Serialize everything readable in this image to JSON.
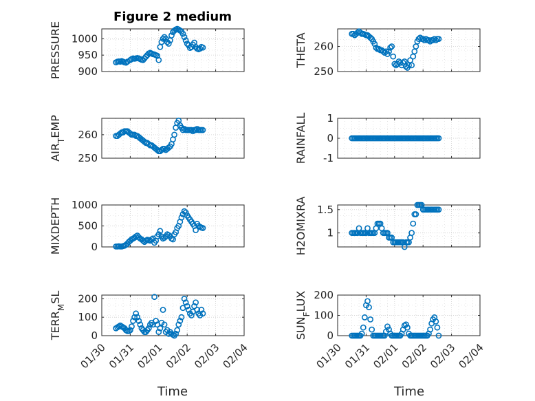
{
  "figure": {
    "title": "Figure 2 medium",
    "xlabel": "Time",
    "x_ticks": [
      "01/30",
      "01/31",
      "02/01",
      "02/02",
      "02/03",
      "02/04"
    ]
  },
  "colors": {
    "marker": "#0072BD",
    "grid": "#cfcfcf",
    "axis": "#262626"
  },
  "chart_data": [
    {
      "type": "scatter",
      "title": "Figure 2 medium",
      "ylabel": "PRESSURE",
      "ylim": [
        900,
        1030
      ],
      "yticks": [
        900,
        950,
        1000
      ],
      "grid": true,
      "x": [
        0.5,
        0.55,
        0.6,
        0.65,
        0.7,
        0.75,
        0.8,
        0.85,
        0.9,
        1.0,
        1.05,
        1.1,
        1.15,
        1.2,
        1.25,
        1.3,
        1.35,
        1.4,
        1.45,
        1.5,
        1.55,
        1.6,
        1.65,
        1.7,
        1.75,
        1.8,
        1.85,
        1.9,
        1.95,
        2.0,
        2.05,
        2.1,
        2.15,
        2.2,
        2.25,
        2.3,
        2.35,
        2.4,
        2.45,
        2.5,
        2.55,
        2.6,
        2.65,
        2.7,
        2.75,
        2.8,
        2.85,
        2.9,
        2.95,
        3.0,
        3.05,
        3.1,
        3.15,
        3.2,
        3.25,
        3.3,
        3.35,
        3.4,
        3.45,
        3.5,
        3.55
      ],
      "y": [
        928,
        930,
        931,
        930,
        932,
        930,
        928,
        927,
        930,
        935,
        938,
        940,
        939,
        940,
        941,
        940,
        938,
        936,
        935,
        940,
        945,
        950,
        955,
        957,
        955,
        953,
        952,
        950,
        948,
        935,
        975,
        990,
        1000,
        1005,
        1000,
        990,
        985,
        995,
        1010,
        1020,
        1025,
        1028,
        1030,
        1028,
        1025,
        1022,
        1015,
        1005,
        995,
        985,
        980,
        972,
        975,
        982,
        988,
        975,
        970,
        968,
        970,
        975,
        973
      ]
    },
    {
      "type": "scatter",
      "ylabel": "THETA",
      "ylim": [
        250,
        267
      ],
      "yticks": [
        250,
        260
      ],
      "grid": true,
      "x": [
        0.5,
        0.55,
        0.6,
        0.65,
        0.7,
        0.75,
        0.8,
        0.85,
        0.9,
        0.95,
        1.0,
        1.05,
        1.1,
        1.15,
        1.2,
        1.25,
        1.3,
        1.35,
        1.4,
        1.45,
        1.5,
        1.55,
        1.6,
        1.65,
        1.7,
        1.75,
        1.8,
        1.85,
        1.9,
        1.95,
        2.0,
        2.05,
        2.1,
        2.15,
        2.2,
        2.25,
        2.3,
        2.35,
        2.4,
        2.45,
        2.5,
        2.55,
        2.6,
        2.65,
        2.7,
        2.75,
        2.8,
        2.85,
        2.9,
        2.95,
        3.0,
        3.05,
        3.1,
        3.15,
        3.2,
        3.25,
        3.3,
        3.35,
        3.4,
        3.45,
        3.5,
        3.55
      ],
      "y": [
        265,
        265,
        264.5,
        265,
        265.5,
        266,
        265.5,
        265,
        265,
        264.8,
        264.5,
        264.5,
        264,
        263.5,
        263,
        262,
        261,
        259.5,
        259,
        259,
        258.5,
        258.5,
        258,
        257.5,
        258,
        257,
        258,
        259.5,
        260,
        256,
        253,
        252.5,
        253,
        254,
        253.5,
        252.5,
        253.5,
        254,
        252,
        251.5,
        252.5,
        254.5,
        252.5,
        256,
        258,
        260,
        262,
        263,
        263.5,
        263,
        263,
        262.5,
        263,
        262.5,
        262.5,
        262,
        262.5,
        262.5,
        263,
        262.5,
        263,
        263
      ]
    },
    {
      "type": "scatter",
      "ylabel": "AIR_TEMP",
      "ylim": [
        250,
        267
      ],
      "yticks": [
        250,
        260
      ],
      "grid": true,
      "x": [
        0.5,
        0.55,
        0.6,
        0.65,
        0.7,
        0.75,
        0.8,
        0.85,
        0.9,
        0.95,
        1.0,
        1.05,
        1.1,
        1.15,
        1.2,
        1.25,
        1.3,
        1.35,
        1.4,
        1.45,
        1.5,
        1.55,
        1.6,
        1.65,
        1.7,
        1.75,
        1.8,
        1.85,
        1.9,
        1.95,
        2.0,
        2.05,
        2.1,
        2.15,
        2.2,
        2.25,
        2.3,
        2.35,
        2.4,
        2.45,
        2.5,
        2.55,
        2.6,
        2.65,
        2.7,
        2.75,
        2.8,
        2.85,
        2.9,
        2.95,
        3.0,
        3.05,
        3.1,
        3.15,
        3.2,
        3.25,
        3.3,
        3.35,
        3.4,
        3.45,
        3.5,
        3.55
      ],
      "y": [
        259.5,
        259.5,
        260,
        260.5,
        261,
        261,
        261.5,
        261.5,
        261.5,
        261,
        260.5,
        260,
        260,
        260,
        259.5,
        259.5,
        259,
        258.5,
        258,
        257.5,
        257,
        256.5,
        256.5,
        256,
        255.5,
        255.5,
        255,
        254.5,
        254,
        253.5,
        253,
        253,
        253.5,
        254,
        254,
        253.5,
        254,
        254.5,
        255,
        256,
        258,
        260,
        263,
        265,
        266,
        264,
        263,
        262,
        262.5,
        262,
        262,
        262,
        262,
        262,
        261.5,
        262,
        262,
        262.5,
        262,
        262,
        262,
        262
      ]
    },
    {
      "type": "scatter",
      "ylabel": "RAINFALL",
      "ylim": [
        -1,
        1
      ],
      "yticks": [
        -1,
        0,
        1
      ],
      "grid": true,
      "x": [
        0.5,
        0.55,
        0.6,
        0.65,
        0.7,
        0.75,
        0.8,
        0.85,
        0.9,
        0.95,
        1.0,
        1.05,
        1.1,
        1.15,
        1.2,
        1.25,
        1.3,
        1.35,
        1.4,
        1.45,
        1.5,
        1.55,
        1.6,
        1.65,
        1.7,
        1.75,
        1.8,
        1.85,
        1.9,
        1.95,
        2.0,
        2.05,
        2.1,
        2.15,
        2.2,
        2.25,
        2.3,
        2.35,
        2.4,
        2.45,
        2.5,
        2.55,
        2.6,
        2.65,
        2.7,
        2.75,
        2.8,
        2.85,
        2.9,
        2.95,
        3.0,
        3.05,
        3.1,
        3.15,
        3.2,
        3.25,
        3.3,
        3.35,
        3.4,
        3.45,
        3.5,
        3.55
      ],
      "y": [
        0,
        0,
        0,
        0,
        0,
        0,
        0,
        0,
        0,
        0,
        0,
        0,
        0,
        0,
        0,
        0,
        0,
        0,
        0,
        0,
        0,
        0,
        0,
        0,
        0,
        0,
        0,
        0,
        0,
        0,
        0,
        0,
        0,
        0,
        0,
        0,
        0,
        0,
        0,
        0,
        0,
        0,
        0,
        0,
        0,
        0,
        0,
        0,
        0,
        0,
        0,
        0,
        0,
        0,
        0,
        0,
        0,
        0,
        0,
        0,
        0,
        0
      ]
    },
    {
      "type": "scatter",
      "ylabel": "MIXDEPTH",
      "ylim": [
        0,
        1000
      ],
      "yticks": [
        0,
        500,
        1000
      ],
      "grid": true,
      "x": [
        0.5,
        0.55,
        0.6,
        0.65,
        0.7,
        0.75,
        0.8,
        0.85,
        0.9,
        0.95,
        1.0,
        1.05,
        1.1,
        1.15,
        1.2,
        1.25,
        1.3,
        1.35,
        1.4,
        1.45,
        1.5,
        1.55,
        1.6,
        1.65,
        1.7,
        1.75,
        1.8,
        1.85,
        1.9,
        1.95,
        2.0,
        2.05,
        2.1,
        2.15,
        2.2,
        2.25,
        2.3,
        2.35,
        2.4,
        2.45,
        2.5,
        2.55,
        2.6,
        2.65,
        2.7,
        2.75,
        2.8,
        2.85,
        2.9,
        2.95,
        3.0,
        3.05,
        3.1,
        3.15,
        3.2,
        3.25,
        3.3,
        3.35,
        3.4,
        3.45,
        3.5,
        3.55
      ],
      "y": [
        10,
        10,
        15,
        10,
        10,
        20,
        30,
        50,
        80,
        120,
        150,
        180,
        200,
        220,
        250,
        270,
        230,
        200,
        180,
        150,
        120,
        150,
        170,
        160,
        150,
        180,
        200,
        100,
        150,
        250,
        300,
        380,
        250,
        200,
        220,
        250,
        300,
        280,
        250,
        200,
        180,
        300,
        350,
        450,
        500,
        600,
        700,
        780,
        850,
        820,
        750,
        700,
        650,
        600,
        550,
        500,
        400,
        550,
        500,
        480,
        460,
        450
      ]
    },
    {
      "type": "scatter",
      "ylabel": "H2OMIXRA",
      "ylim": [
        0.7,
        1.6
      ],
      "yticks": [
        1,
        1.5
      ],
      "grid": true,
      "x": [
        0.5,
        0.55,
        0.6,
        0.65,
        0.7,
        0.75,
        0.8,
        0.85,
        0.9,
        0.95,
        1.0,
        1.05,
        1.1,
        1.15,
        1.2,
        1.25,
        1.3,
        1.35,
        1.4,
        1.45,
        1.5,
        1.55,
        1.6,
        1.65,
        1.7,
        1.75,
        1.8,
        1.85,
        1.9,
        1.95,
        2.0,
        2.05,
        2.1,
        2.15,
        2.2,
        2.25,
        2.3,
        2.35,
        2.4,
        2.45,
        2.5,
        2.55,
        2.6,
        2.65,
        2.7,
        2.75,
        2.8,
        2.85,
        2.9,
        2.95,
        3.0,
        3.05,
        3.1,
        3.15,
        3.2,
        3.25,
        3.3,
        3.35,
        3.4,
        3.45,
        3.5,
        3.55
      ],
      "y": [
        1,
        1,
        1,
        1,
        1,
        1.1,
        1,
        1,
        1,
        1,
        1,
        1.1,
        1,
        1,
        1,
        1,
        1,
        1.1,
        1.2,
        1.2,
        1.2,
        1.1,
        1,
        1,
        1,
        1,
        0.9,
        0.9,
        0.9,
        0.8,
        0.8,
        0.8,
        0.8,
        0.8,
        0.8,
        0.8,
        0.8,
        0.7,
        0.8,
        0.8,
        0.8,
        0.9,
        1,
        1.2,
        1.4,
        1.4,
        1.6,
        1.6,
        1.6,
        1.6,
        1.5,
        1.5,
        1.5,
        1.5,
        1.5,
        1.5,
        1.5,
        1.5,
        1.5,
        1.5,
        1.5,
        1.5
      ]
    },
    {
      "type": "scatter",
      "ylabel": "TERR_MSL",
      "ylim": [
        0,
        220
      ],
      "yticks": [
        0,
        100,
        200
      ],
      "grid": true,
      "x": [
        0.5,
        0.55,
        0.6,
        0.65,
        0.7,
        0.75,
        0.8,
        0.85,
        0.9,
        0.95,
        1.0,
        1.05,
        1.1,
        1.15,
        1.2,
        1.25,
        1.3,
        1.35,
        1.4,
        1.45,
        1.5,
        1.55,
        1.6,
        1.65,
        1.7,
        1.75,
        1.8,
        1.85,
        1.9,
        1.95,
        2.0,
        2.05,
        2.1,
        2.15,
        2.2,
        2.25,
        2.3,
        2.35,
        2.4,
        2.45,
        2.5,
        2.55,
        2.6,
        2.65,
        2.7,
        2.75,
        2.8,
        2.85,
        2.9,
        2.95,
        3.0,
        3.05,
        3.1,
        3.15,
        3.2,
        3.25,
        3.3,
        3.35,
        3.4,
        3.45,
        3.5,
        3.55
      ],
      "y": [
        40,
        45,
        50,
        55,
        50,
        45,
        40,
        30,
        25,
        25,
        30,
        50,
        80,
        100,
        120,
        100,
        80,
        60,
        40,
        30,
        20,
        20,
        30,
        40,
        60,
        70,
        60,
        210,
        80,
        60,
        20,
        40,
        70,
        140,
        60,
        20,
        30,
        10,
        20,
        10,
        5,
        0,
        10,
        30,
        60,
        80,
        100,
        150,
        200,
        180,
        160,
        140,
        120,
        110,
        130,
        160,
        180,
        140,
        120,
        110,
        140,
        120
      ]
    },
    {
      "type": "scatter",
      "ylabel": "SUN_FLUX",
      "ylim": [
        0,
        200
      ],
      "yticks": [
        0,
        100,
        200
      ],
      "grid": true,
      "x": [
        0.5,
        0.55,
        0.6,
        0.65,
        0.7,
        0.75,
        0.8,
        0.85,
        0.9,
        0.95,
        1.0,
        1.05,
        1.1,
        1.15,
        1.2,
        1.25,
        1.3,
        1.35,
        1.4,
        1.45,
        1.5,
        1.55,
        1.6,
        1.65,
        1.7,
        1.75,
        1.8,
        1.85,
        1.9,
        1.95,
        2.0,
        2.05,
        2.1,
        2.15,
        2.2,
        2.25,
        2.3,
        2.35,
        2.4,
        2.45,
        2.5,
        2.55,
        2.6,
        2.65,
        2.7,
        2.75,
        2.8,
        2.85,
        2.9,
        2.95,
        3.0,
        3.05,
        3.1,
        3.15,
        3.2,
        3.25,
        3.3,
        3.35,
        3.4,
        3.45,
        3.5,
        3.55
      ],
      "y": [
        0,
        0,
        0,
        0,
        0,
        0,
        0,
        10,
        40,
        90,
        150,
        170,
        140,
        80,
        30,
        0,
        0,
        0,
        0,
        0,
        0,
        0,
        0,
        0,
        20,
        45,
        30,
        10,
        0,
        0,
        0,
        0,
        0,
        0,
        0,
        10,
        30,
        50,
        55,
        40,
        10,
        0,
        0,
        0,
        0,
        0,
        0,
        0,
        0,
        0,
        0,
        0,
        0,
        0,
        10,
        30,
        60,
        80,
        90,
        70,
        40,
        0
      ]
    }
  ]
}
